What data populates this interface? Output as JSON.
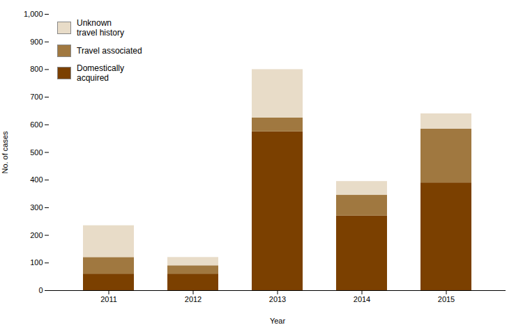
{
  "chart_data": {
    "type": "bar",
    "stacked": true,
    "categories": [
      "2011",
      "2012",
      "2013",
      "2014",
      "2015"
    ],
    "series": [
      {
        "name": "Domestically\nacquired",
        "color": "#7B4000",
        "values": [
          60,
          60,
          575,
          270,
          390
        ]
      },
      {
        "name": "Travel associated",
        "color": "#A07840",
        "values": [
          60,
          30,
          50,
          75,
          195
        ]
      },
      {
        "name": "Unknown\ntravel history",
        "color": "#E8DCC8",
        "values": [
          115,
          30,
          175,
          50,
          55
        ]
      }
    ],
    "xlabel": "Year",
    "ylabel": "No. of cases",
    "ylim": [
      0,
      1000
    ],
    "yticks": [
      0,
      100,
      200,
      300,
      400,
      500,
      600,
      700,
      800,
      900,
      {
        "value": 1000,
        "label": "1,000"
      }
    ],
    "legend": "upper left",
    "grid": false
  }
}
